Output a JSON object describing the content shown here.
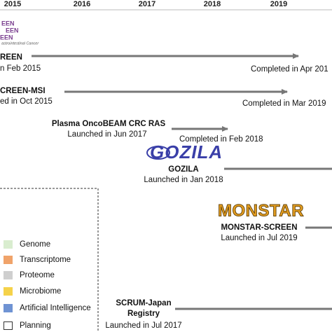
{
  "timeline": {
    "years": [
      "2015",
      "2016",
      "2017",
      "2018",
      "2019"
    ]
  },
  "projects": [
    {
      "logo": "EEN",
      "logo_caption": "astrointestinal Cancer",
      "name": "REEN",
      "launch": "n Feb 2015",
      "completed": "Completed in Apr 201"
    },
    {
      "name": "CREEN-MSI",
      "launch": "ed in Oct 2015",
      "completed": "Completed in Mar 2019"
    },
    {
      "name": "Plasma OncoBEAM CRC RAS",
      "launch": "Launched in Jun 2017",
      "completed": "Completed in Feb 2018"
    },
    {
      "logo": "GOZILA",
      "name": "GOZILA",
      "launch": "Launched in Jan 2018"
    },
    {
      "logo": "MONSTAR",
      "name": "MONSTAR-SCREEN",
      "launch": "Launched in Jul 2019"
    },
    {
      "name": "SCRUM-Japan",
      "name2": "Registry",
      "launch": "Launched in Jul 2017"
    }
  ],
  "legend": [
    "Genome",
    "Transcriptome",
    "Proteome",
    "Microbiome",
    "Artificial Intelligence",
    "Planning"
  ]
}
